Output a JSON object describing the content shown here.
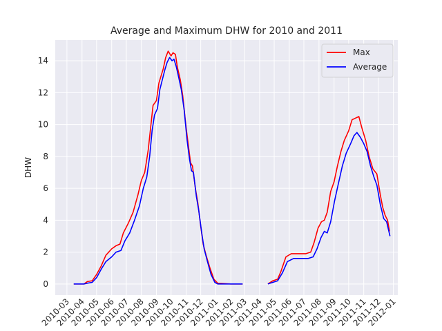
{
  "chart_data": {
    "type": "line",
    "title": "Average and Maximum DHW for 2010 and 2011",
    "xlabel": "",
    "ylabel": "DHW",
    "ylim": [
      -0.7,
      15.3
    ],
    "xlim": [
      "2010-02-05",
      "2012-01-10"
    ],
    "yticks": [
      0,
      2,
      4,
      6,
      8,
      10,
      12,
      14
    ],
    "xticks": [
      "2010-03",
      "2010-04",
      "2010-05",
      "2010-06",
      "2010-07",
      "2010-08",
      "2010-09",
      "2010-10",
      "2010-11",
      "2010-12",
      "2011-01",
      "2011-02",
      "2011-03",
      "2011-04",
      "2011-05",
      "2011-06",
      "2011-07",
      "2011-08",
      "2011-09",
      "2011-10",
      "2011-11",
      "2011-12",
      "2012-01"
    ],
    "grid": true,
    "legend": "top-right",
    "series": [
      {
        "name": "Max",
        "color": "#ff0000",
        "segments": [
          [
            [
              "2010-03-15",
              0.0
            ],
            [
              "2010-04-05",
              0.0
            ],
            [
              "2010-04-12",
              0.15
            ],
            [
              "2010-04-22",
              0.2
            ],
            [
              "2010-05-01",
              0.6
            ],
            [
              "2010-05-10",
              1.1
            ],
            [
              "2010-05-20",
              1.8
            ],
            [
              "2010-06-01",
              2.2
            ],
            [
              "2010-06-10",
              2.4
            ],
            [
              "2010-06-18",
              2.5
            ],
            [
              "2010-06-25",
              3.2
            ],
            [
              "2010-07-05",
              3.8
            ],
            [
              "2010-07-15",
              4.5
            ],
            [
              "2010-07-25",
              5.6
            ],
            [
              "2010-08-01",
              6.5
            ],
            [
              "2010-08-08",
              7.0
            ],
            [
              "2010-08-15",
              8.4
            ],
            [
              "2010-08-20",
              9.8
            ],
            [
              "2010-08-25",
              11.2
            ],
            [
              "2010-09-01",
              11.5
            ],
            [
              "2010-09-06",
              12.6
            ],
            [
              "2010-09-10",
              13.0
            ],
            [
              "2010-09-15",
              13.5
            ],
            [
              "2010-09-20",
              14.2
            ],
            [
              "2010-09-25",
              14.6
            ],
            [
              "2010-10-01",
              14.3
            ],
            [
              "2010-10-05",
              14.5
            ],
            [
              "2010-10-10",
              14.4
            ],
            [
              "2010-10-14",
              13.6
            ],
            [
              "2010-10-20",
              12.8
            ],
            [
              "2010-10-25",
              11.8
            ],
            [
              "2010-11-01",
              9.8
            ],
            [
              "2010-11-06",
              8.6
            ],
            [
              "2010-11-10",
              7.6
            ],
            [
              "2010-11-14",
              7.4
            ],
            [
              "2010-11-20",
              6.0
            ],
            [
              "2010-11-25",
              5.1
            ],
            [
              "2010-12-01",
              3.6
            ],
            [
              "2010-12-06",
              2.5
            ],
            [
              "2010-12-12",
              1.8
            ],
            [
              "2010-12-20",
              1.0
            ],
            [
              "2010-12-28",
              0.3
            ],
            [
              "2011-01-05",
              0.05
            ],
            [
              "2011-02-01",
              0.0
            ],
            [
              "2011-02-25",
              0.0
            ]
          ],
          [
            [
              "2011-04-18",
              0.0
            ],
            [
              "2011-04-28",
              0.2
            ],
            [
              "2011-05-08",
              0.3
            ],
            [
              "2011-05-15",
              0.8
            ],
            [
              "2011-05-25",
              1.7
            ],
            [
              "2011-06-05",
              1.9
            ],
            [
              "2011-06-20",
              1.9
            ],
            [
              "2011-07-05",
              1.9
            ],
            [
              "2011-07-15",
              2.0
            ],
            [
              "2011-07-22",
              2.6
            ],
            [
              "2011-07-30",
              3.5
            ],
            [
              "2011-08-06",
              3.9
            ],
            [
              "2011-08-12",
              4.0
            ],
            [
              "2011-08-18",
              4.5
            ],
            [
              "2011-08-25",
              5.8
            ],
            [
              "2011-09-01",
              6.4
            ],
            [
              "2011-09-08",
              7.4
            ],
            [
              "2011-09-15",
              8.3
            ],
            [
              "2011-09-22",
              9.0
            ],
            [
              "2011-10-01",
              9.6
            ],
            [
              "2011-10-08",
              10.3
            ],
            [
              "2011-10-15",
              10.4
            ],
            [
              "2011-10-22",
              10.5
            ],
            [
              "2011-10-28",
              9.8
            ],
            [
              "2011-11-05",
              9.0
            ],
            [
              "2011-11-12",
              8.0
            ],
            [
              "2011-11-20",
              7.2
            ],
            [
              "2011-11-28",
              6.9
            ],
            [
              "2011-12-05",
              5.6
            ],
            [
              "2011-12-10",
              4.8
            ],
            [
              "2011-12-15",
              4.3
            ],
            [
              "2011-12-20",
              4.0
            ],
            [
              "2011-12-24",
              3.3
            ]
          ]
        ]
      },
      {
        "name": "Average",
        "color": "#0000ff",
        "segments": [
          [
            [
              "2010-03-15",
              0.0
            ],
            [
              "2010-04-05",
              0.0
            ],
            [
              "2010-04-12",
              0.05
            ],
            [
              "2010-04-22",
              0.1
            ],
            [
              "2010-05-01",
              0.4
            ],
            [
              "2010-05-10",
              0.9
            ],
            [
              "2010-05-20",
              1.4
            ],
            [
              "2010-06-01",
              1.7
            ],
            [
              "2010-06-10",
              2.0
            ],
            [
              "2010-06-20",
              2.1
            ],
            [
              "2010-06-28",
              2.7
            ],
            [
              "2010-07-08",
              3.2
            ],
            [
              "2010-07-18",
              4.0
            ],
            [
              "2010-07-28",
              4.9
            ],
            [
              "2010-08-05",
              6.0
            ],
            [
              "2010-08-12",
              6.7
            ],
            [
              "2010-08-18",
              8.0
            ],
            [
              "2010-08-23",
              9.6
            ],
            [
              "2010-08-28",
              10.6
            ],
            [
              "2010-09-03",
              11.0
            ],
            [
              "2010-09-08",
              12.2
            ],
            [
              "2010-09-13",
              12.8
            ],
            [
              "2010-09-18",
              13.4
            ],
            [
              "2010-09-23",
              13.9
            ],
            [
              "2010-09-28",
              14.2
            ],
            [
              "2010-10-03",
              14.0
            ],
            [
              "2010-10-07",
              14.1
            ],
            [
              "2010-10-12",
              13.6
            ],
            [
              "2010-10-17",
              12.9
            ],
            [
              "2010-10-22",
              12.2
            ],
            [
              "2010-10-28",
              10.9
            ],
            [
              "2010-11-03",
              9.0
            ],
            [
              "2010-11-08",
              7.8
            ],
            [
              "2010-11-12",
              7.1
            ],
            [
              "2010-11-16",
              7.0
            ],
            [
              "2010-11-22",
              5.5
            ],
            [
              "2010-11-27",
              4.6
            ],
            [
              "2010-12-03",
              3.2
            ],
            [
              "2010-12-08",
              2.2
            ],
            [
              "2010-12-14",
              1.5
            ],
            [
              "2010-12-22",
              0.6
            ],
            [
              "2010-12-30",
              0.1
            ],
            [
              "2011-01-05",
              0.0
            ],
            [
              "2011-02-25",
              0.0
            ]
          ],
          [
            [
              "2011-04-18",
              0.0
            ],
            [
              "2011-04-28",
              0.1
            ],
            [
              "2011-05-08",
              0.2
            ],
            [
              "2011-05-18",
              0.7
            ],
            [
              "2011-05-28",
              1.4
            ],
            [
              "2011-06-10",
              1.6
            ],
            [
              "2011-06-25",
              1.6
            ],
            [
              "2011-07-10",
              1.6
            ],
            [
              "2011-07-20",
              1.7
            ],
            [
              "2011-07-28",
              2.2
            ],
            [
              "2011-08-05",
              2.9
            ],
            [
              "2011-08-12",
              3.3
            ],
            [
              "2011-08-18",
              3.2
            ],
            [
              "2011-08-25",
              3.9
            ],
            [
              "2011-09-02",
              5.2
            ],
            [
              "2011-09-10",
              6.3
            ],
            [
              "2011-09-18",
              7.4
            ],
            [
              "2011-09-26",
              8.2
            ],
            [
              "2011-10-05",
              8.8
            ],
            [
              "2011-10-12",
              9.3
            ],
            [
              "2011-10-18",
              9.5
            ],
            [
              "2011-10-25",
              9.2
            ],
            [
              "2011-11-01",
              8.8
            ],
            [
              "2011-11-08",
              8.3
            ],
            [
              "2011-11-15",
              7.4
            ],
            [
              "2011-11-22",
              6.7
            ],
            [
              "2011-11-28",
              6.2
            ],
            [
              "2011-12-05",
              5.0
            ],
            [
              "2011-12-12",
              4.1
            ],
            [
              "2011-12-18",
              3.9
            ],
            [
              "2011-12-25",
              3.0
            ]
          ]
        ]
      }
    ]
  }
}
